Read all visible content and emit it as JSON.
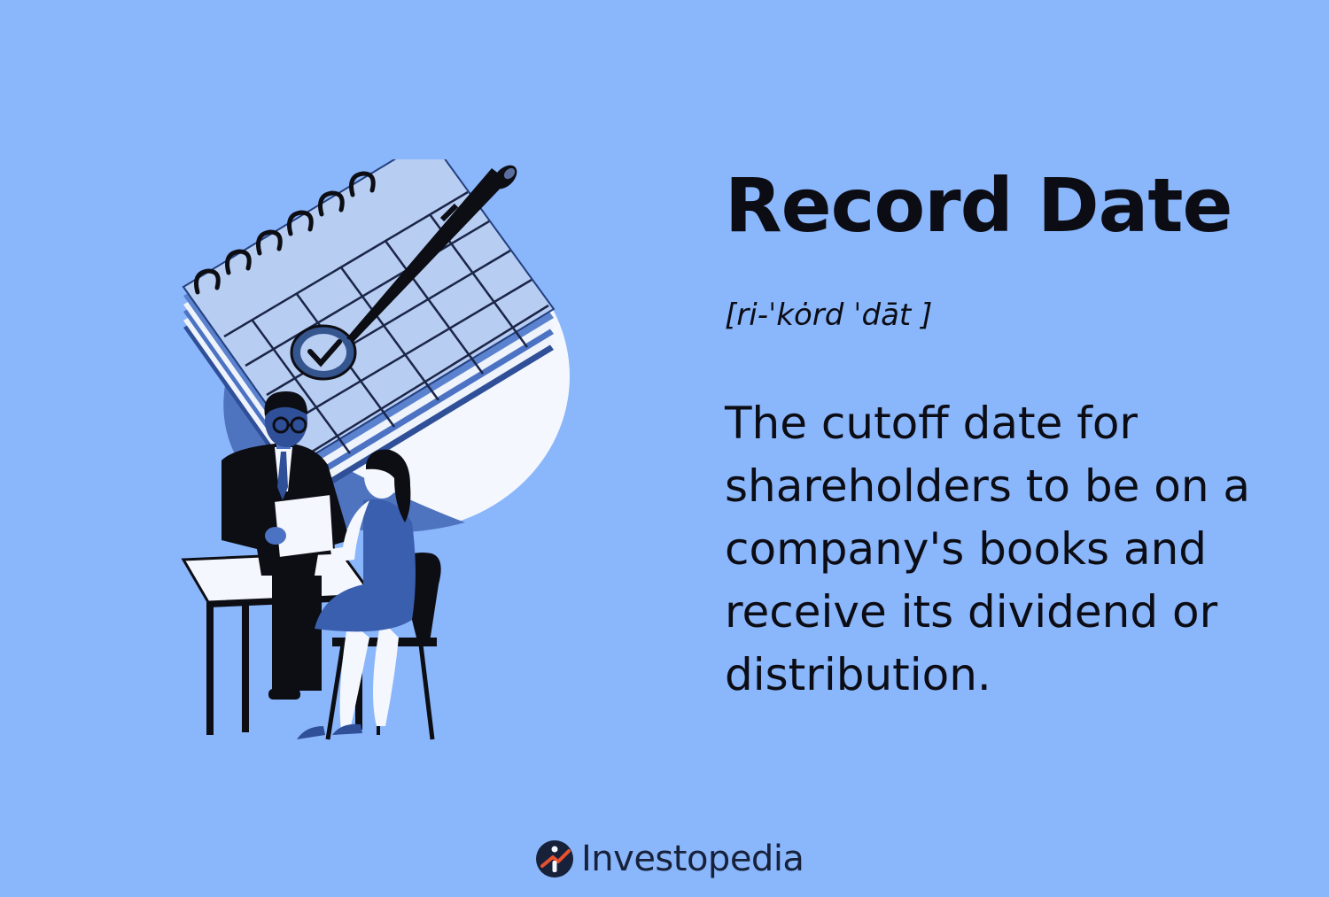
{
  "definition_card": {
    "term": "Record Date",
    "pronunciation": "[ri-ˈkȯrd ˈdāt ]",
    "definition": "The cutoff date for shareholders to be on a company's books and receive its dividend or distribution."
  },
  "branding": {
    "logo_icon": "investopedia-logo-icon",
    "name": "Investopedia",
    "colors": {
      "navy": "#17213a",
      "accent": "#e8512d"
    }
  },
  "illustration": {
    "icons": [
      "calendar-icon",
      "pen-icon",
      "checkmark-icon",
      "man-figure",
      "woman-figure",
      "table",
      "chair"
    ]
  },
  "colors": {
    "background": "#8ab6fb",
    "text": "#0c0c14",
    "calendar_page": "#b7cdf2",
    "calendar_edge": "#5a82cf",
    "ink": "#0d0d14"
  }
}
